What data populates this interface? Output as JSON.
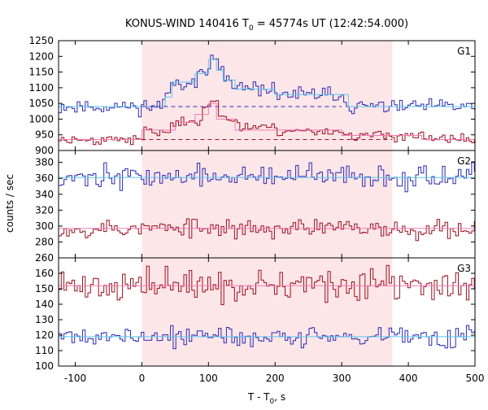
{
  "chart_data": {
    "type": "line",
    "title": {
      "prefix": "KONUS-WIND 140416 T",
      "sub": "0",
      "suffix": " = 45774s UT (12:42:54.000)"
    },
    "xlabel": {
      "prefix": "T - T",
      "sub": "0",
      "suffix": ", s"
    },
    "ylabel": "counts / sec",
    "xlim": [
      -125,
      500
    ],
    "xticks": [
      "-100",
      "0",
      "100",
      "200",
      "300",
      "400",
      "500"
    ],
    "shaded_interval": [
      0,
      376
    ],
    "colors": {
      "shade": "#fde6e8",
      "blue": "#2a2ab4",
      "red": "#9b1020",
      "bg_cyan": "#5ac8f0",
      "bg_pink": "#f07ab4",
      "frame": "#000000"
    },
    "panels": [
      {
        "label": "G1",
        "ylim": [
          900,
          1250
        ],
        "yticks": [
          "900",
          "950",
          "1000",
          "1050",
          "1100",
          "1150",
          "1200",
          "1250"
        ],
        "series": [
          {
            "color": "blue",
            "base": 1040,
            "noise": 11,
            "seed": 11,
            "features": [
              {
                "t0": 30,
                "t1": 40,
                "v": 1070
              },
              {
                "t0": 40,
                "t1": 80,
                "v": 1118
              },
              {
                "t0": 80,
                "t1": 100,
                "v": 1145
              },
              {
                "t0": 100,
                "t1": 112,
                "v": 1192
              },
              {
                "t0": 112,
                "t1": 120,
                "v": 1158
              },
              {
                "t0": 120,
                "t1": 135,
                "v": 1128
              },
              {
                "t0": 135,
                "t1": 200,
                "v": 1095
              },
              {
                "t0": 200,
                "t1": 300,
                "v": 1078
              },
              {
                "t0": 300,
                "t1": 310,
                "v": 1055
              }
            ],
            "overlay": {
              "color": "bg_cyan",
              "steps": [
                {
                  "t0": -125,
                  "t1": 35,
                  "v": 1040
                },
                {
                  "t0": 35,
                  "t1": 45,
                  "v": 1070
                },
                {
                  "t0": 45,
                  "t1": 80,
                  "v": 1118
                },
                {
                  "t0": 80,
                  "t1": 100,
                  "v": 1145
                },
                {
                  "t0": 100,
                  "t1": 112,
                  "v": 1190
                },
                {
                  "t0": 112,
                  "t1": 122,
                  "v": 1155
                },
                {
                  "t0": 122,
                  "t1": 140,
                  "v": 1125
                },
                {
                  "t0": 140,
                  "t1": 200,
                  "v": 1095
                },
                {
                  "t0": 200,
                  "t1": 310,
                  "v": 1078
                },
                {
                  "t0": 310,
                  "t1": 500,
                  "v": 1040
                }
              ]
            },
            "background": {
              "value": 1040,
              "t0": 0,
              "t1": 300,
              "color": "blue"
            }
          },
          {
            "color": "red",
            "base": 935,
            "noise": 8,
            "seed": 23,
            "features": [
              {
                "t0": 0,
                "t1": 40,
                "v": 960
              },
              {
                "t0": 40,
                "t1": 70,
                "v": 985
              },
              {
                "t0": 70,
                "t1": 90,
                "v": 1000
              },
              {
                "t0": 90,
                "t1": 100,
                "v": 1045
              },
              {
                "t0": 100,
                "t1": 112,
                "v": 1065
              },
              {
                "t0": 112,
                "t1": 140,
                "v": 1000
              },
              {
                "t0": 140,
                "t1": 200,
                "v": 975
              },
              {
                "t0": 200,
                "t1": 300,
                "v": 962
              },
              {
                "t0": 300,
                "t1": 420,
                "v": 948
              }
            ],
            "overlay": {
              "color": "bg_pink",
              "steps": [
                {
                  "t0": -125,
                  "t1": 0,
                  "v": 935
                },
                {
                  "t0": 0,
                  "t1": 50,
                  "v": 965
                },
                {
                  "t0": 50,
                  "t1": 80,
                  "v": 990
                },
                {
                  "t0": 80,
                  "t1": 100,
                  "v": 1015
                },
                {
                  "t0": 100,
                  "t1": 112,
                  "v": 1050
                },
                {
                  "t0": 112,
                  "t1": 140,
                  "v": 1000
                },
                {
                  "t0": 140,
                  "t1": 300,
                  "v": 965
                },
                {
                  "t0": 300,
                  "t1": 420,
                  "v": 948
                },
                {
                  "t0": 420,
                  "t1": 500,
                  "v": 935
                }
              ]
            },
            "background": {
              "value": 935,
              "t0": 0,
              "t1": 376,
              "color": "red"
            }
          }
        ]
      },
      {
        "label": "G2",
        "ylim": [
          260,
          395
        ],
        "yticks": [
          "260",
          "280",
          "300",
          "320",
          "340",
          "360",
          "380"
        ],
        "series": [
          {
            "color": "blue",
            "base": 362,
            "noise": 7,
            "seed": 37,
            "features": [],
            "overlay": {
              "color": "bg_cyan",
              "steps": [
                {
                  "t0": -125,
                  "t1": 500,
                  "v": 361
                }
              ]
            }
          },
          {
            "color": "red",
            "base": 297,
            "noise": 6,
            "seed": 53,
            "features": [],
            "overlay": {
              "color": "bg_pink",
              "steps": [
                {
                  "t0": -125,
                  "t1": 500,
                  "v": 297
                }
              ]
            }
          }
        ]
      },
      {
        "label": "G3",
        "ylim": [
          100,
          170
        ],
        "yticks": [
          "100",
          "110",
          "120",
          "130",
          "140",
          "150",
          "160"
        ],
        "series": [
          {
            "color": "red",
            "base": 152,
            "noise": 5,
            "seed": 71,
            "features": [],
            "overlay": {
              "color": "bg_pink",
              "steps": [
                {
                  "t0": -125,
                  "t1": 500,
                  "v": 152
                }
              ]
            }
          },
          {
            "color": "blue",
            "base": 119,
            "noise": 3.5,
            "seed": 89,
            "features": [],
            "overlay": {
              "color": "bg_cyan",
              "steps": [
                {
                  "t0": -125,
                  "t1": 500,
                  "v": 119
                }
              ]
            }
          }
        ]
      }
    ]
  }
}
